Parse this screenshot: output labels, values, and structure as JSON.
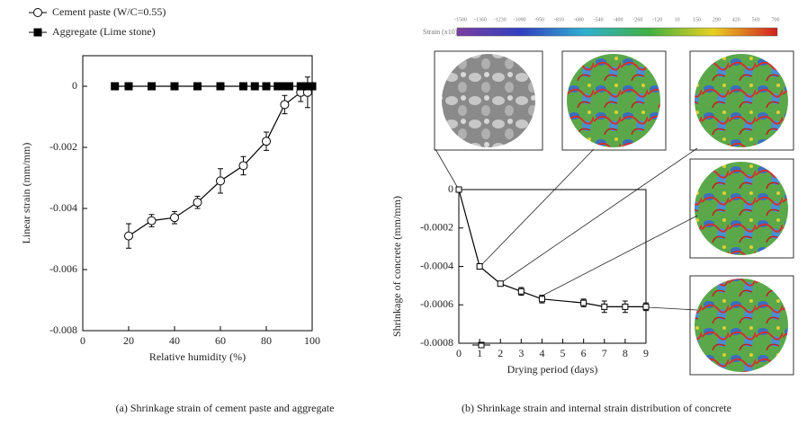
{
  "chart_data": [
    {
      "type": "line",
      "xlabel": "Relative humidity (%)",
      "ylabel": "Linear strain (mm/mm)",
      "xlim": [
        0,
        100
      ],
      "xticks": [
        0,
        20,
        40,
        60,
        80,
        100
      ],
      "ylim": [
        -0.008,
        0.001
      ],
      "yticks": [
        0,
        -0.002,
        -0.004,
        -0.006,
        -0.008
      ],
      "legend": "top-left",
      "caption": "(a) Shrinkage strain of cement paste and aggregate",
      "series": [
        {
          "name": "Cement paste (W/C=0.55)",
          "color": "#000000",
          "marker": "open-circle",
          "x": [
            20,
            30,
            40,
            50,
            60,
            70,
            80,
            88,
            95,
            98
          ],
          "values": [
            -0.0049,
            -0.0044,
            -0.0043,
            -0.0038,
            -0.0031,
            -0.0026,
            -0.0018,
            -0.0006,
            -0.0002,
            -0.0002
          ],
          "errors": [
            0.0004,
            0.0002,
            0.0002,
            0.0002,
            0.0004,
            0.0003,
            0.0003,
            0.0003,
            0.0003,
            0.0005
          ]
        },
        {
          "name": "Aggregate (Lime stone)",
          "color": "#000000",
          "marker": "filled-square",
          "x": [
            14,
            20,
            30,
            40,
            50,
            60,
            70,
            75,
            80,
            85,
            88,
            90,
            95,
            98,
            100
          ],
          "values": [
            0,
            0,
            0,
            0,
            0,
            0,
            0,
            0,
            0,
            0,
            0,
            0,
            0,
            0,
            0
          ]
        }
      ]
    },
    {
      "type": "line",
      "xlabel": "Drying period (days)",
      "ylabel": "Shrinkage of concrete (mm/mm)",
      "xlim": [
        0,
        9
      ],
      "xticks": [
        0,
        1,
        2,
        3,
        4,
        5,
        6,
        7,
        8,
        9
      ],
      "ylim": [
        -0.0008,
        0
      ],
      "yticks": [
        0,
        -0.0002,
        -0.0004,
        -0.0006,
        -0.0008
      ],
      "caption": "(b) Shrinkage strain and internal strain distribution of concrete",
      "colorbar": {
        "label": "Strain (x10)",
        "ticks": [
          -1500,
          -1360,
          -1230,
          -1090,
          -950,
          -810,
          -680,
          -540,
          -400,
          -260,
          -120,
          10,
          150,
          290,
          420,
          560,
          700
        ]
      },
      "series": [
        {
          "color": "#000000",
          "marker": "open-square",
          "x": [
            0,
            1,
            2,
            3,
            4,
            6,
            7,
            8,
            9
          ],
          "values": [
            0,
            -0.0004,
            -0.00049,
            -0.00053,
            -0.00057,
            -0.00059,
            -0.00061,
            -0.00061,
            -0.00061
          ],
          "errors": [
            0,
            1e-05,
            1e-05,
            2e-05,
            2e-05,
            2e-05,
            3e-05,
            3e-05,
            2e-05
          ]
        }
      ]
    }
  ]
}
